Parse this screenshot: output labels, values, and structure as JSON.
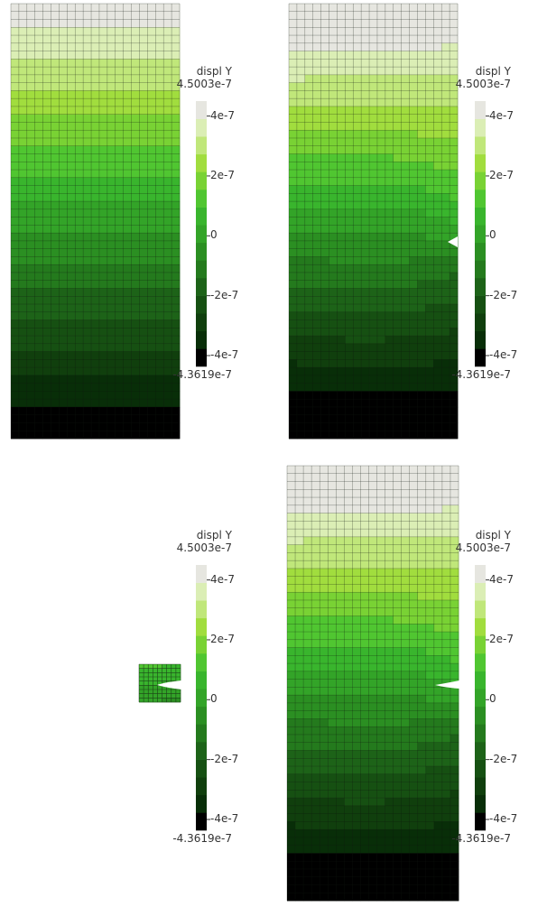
{
  "quantity_label": "displ Y",
  "range_max_label": "4.5003e-7",
  "range_min_label": "-4.3619e-7",
  "range": {
    "min": -4.3619e-07,
    "max": 4.5003e-07
  },
  "ticks": [
    {
      "value": 4e-07,
      "label": "4e-7"
    },
    {
      "value": 2e-07,
      "label": "2e-7"
    },
    {
      "value": 0,
      "label": "0"
    },
    {
      "value": -2e-07,
      "label": "-2e-7"
    },
    {
      "value": -4e-07,
      "label": "-4e-7"
    }
  ],
  "color_bands": [
    "#000000",
    "#082e08",
    "#103f0d",
    "#165012",
    "#1d6318",
    "#247a1d",
    "#2b8f22",
    "#33a428",
    "#39b52d",
    "#50c631",
    "#79d234",
    "#a1dd3e",
    "#c0e77a",
    "#dbeeb5",
    "#e6e6e0"
  ],
  "colors": {
    "mesh_line": "#101810",
    "label_text": "#333333",
    "background": "#ffffff"
  }
}
